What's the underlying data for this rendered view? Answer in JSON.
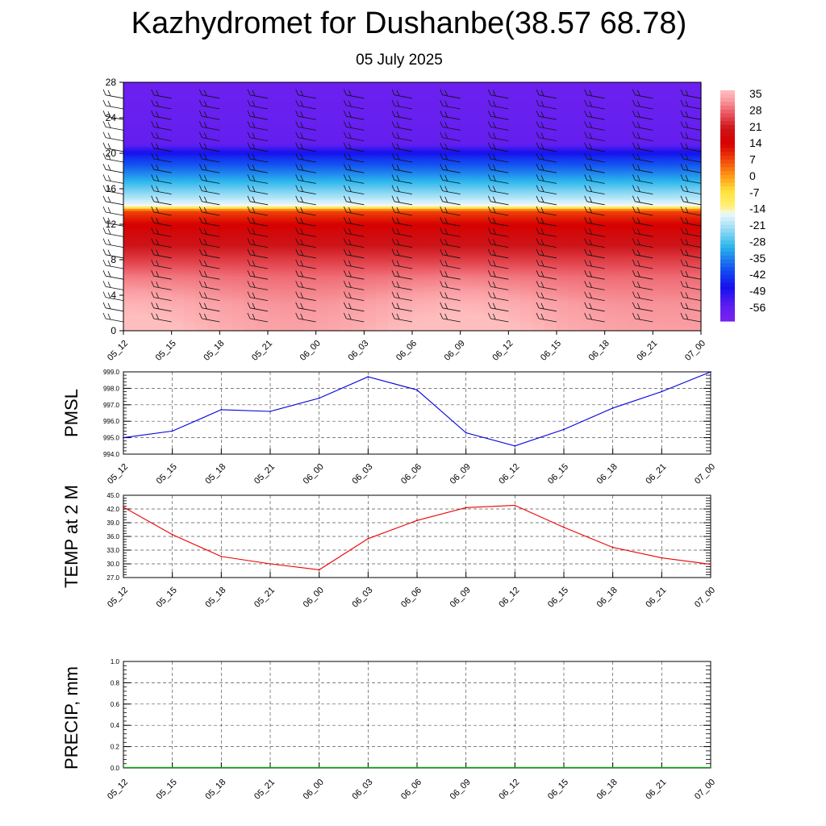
{
  "title": "Kazhydromet for Dushanbe(38.57 68.78)",
  "subtitle": "05 July 2025",
  "chart_data": [
    {
      "type": "heatmap",
      "description_free": true,
      "x_tick_labels": [
        "05_12",
        "05_15",
        "05_18",
        "05_21",
        "06_00",
        "06_03",
        "06_06",
        "06_09",
        "06_12",
        "06_15",
        "06_18",
        "06_21",
        "07_00"
      ],
      "y_ticks": [
        0,
        4,
        8,
        12,
        16,
        20,
        24,
        28
      ],
      "ylim": [
        0,
        28
      ],
      "colorbar_labels": [
        "35",
        "28",
        "21",
        "14",
        "7",
        "0",
        "-7",
        "-14",
        "-21",
        "-28",
        "-35",
        "-42",
        "-49",
        "-56"
      ],
      "colorbar_range": [
        -63,
        40
      ],
      "temperature_profile": [
        [
          0,
          38
        ],
        [
          3,
          36
        ],
        [
          6,
          32
        ],
        [
          8,
          27
        ],
        [
          10,
          22
        ],
        [
          12,
          16
        ],
        [
          13.5,
          9
        ],
        [
          14,
          -14
        ],
        [
          15,
          -20
        ],
        [
          16.5,
          -28
        ],
        [
          18,
          -36
        ],
        [
          19.5,
          -44
        ],
        [
          20.5,
          -52
        ],
        [
          21,
          -58
        ],
        [
          28,
          -60
        ]
      ],
      "warm_core_times": [
        "05_12",
        "06_09"
      ],
      "colors": {
        "hot": "#ffb6b6",
        "red": "#d00000",
        "orange": "#ff8c00",
        "yellow": "#ffee55",
        "cyan": "#2ab4ec",
        "blue": "#1010ee",
        "violet": "#7a22ee"
      }
    },
    {
      "type": "line",
      "ylabel": "PMSL",
      "x_tick_labels": [
        "05_12",
        "05_15",
        "05_18",
        "05_21",
        "06_00",
        "06_03",
        "06_06",
        "06_09",
        "06_12",
        "06_15",
        "06_18",
        "06_21",
        "07_00"
      ],
      "y_tick_labels": [
        "994.0",
        "995.0",
        "996.0",
        "997.0",
        "998.0",
        "999.0"
      ],
      "ylim": [
        994,
        999
      ],
      "series": [
        {
          "values": [
            995.0,
            995.4,
            996.7,
            996.6,
            997.4,
            998.7,
            997.9,
            995.3,
            994.5,
            995.5,
            996.8,
            997.8,
            999.0
          ],
          "color": "#0000dd"
        }
      ]
    },
    {
      "type": "line",
      "ylabel": "TEMP at 2 M",
      "x_tick_labels": [
        "05_12",
        "05_15",
        "05_18",
        "05_21",
        "06_00",
        "06_03",
        "06_06",
        "06_09",
        "06_12",
        "06_15",
        "06_18",
        "06_21",
        "07_00"
      ],
      "y_tick_labels": [
        "27.0",
        "30.0",
        "33.0",
        "36.0",
        "39.0",
        "42.0",
        "45.0"
      ],
      "ylim": [
        27,
        45
      ],
      "series": [
        {
          "values": [
            42.4,
            36.4,
            31.6,
            30.0,
            28.7,
            35.5,
            39.5,
            42.3,
            42.8,
            38.0,
            33.6,
            31.3,
            29.9
          ],
          "color": "#ee0000"
        }
      ]
    },
    {
      "type": "line",
      "ylabel": "PRECIP, mm",
      "x_tick_labels": [
        "05_12",
        "05_15",
        "05_18",
        "05_21",
        "06_00",
        "06_03",
        "06_06",
        "06_09",
        "06_12",
        "06_15",
        "06_18",
        "06_21",
        "07_00"
      ],
      "y_tick_labels": [
        "0.0",
        "0.2",
        "0.4",
        "0.6",
        "0.8",
        "1.0"
      ],
      "ylim": [
        0,
        1
      ],
      "series": [
        {
          "values": [
            0,
            0,
            0,
            0,
            0,
            0,
            0,
            0,
            0,
            0,
            0,
            0,
            0
          ],
          "color": "#00aa00"
        }
      ]
    }
  ]
}
